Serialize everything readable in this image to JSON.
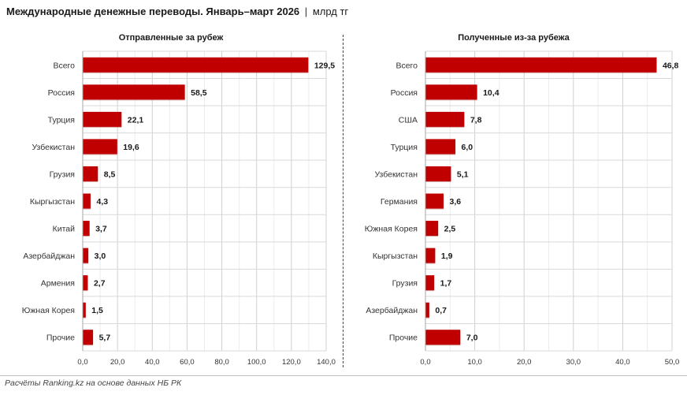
{
  "title": {
    "main": "Международные денежные переводы. Январь–март 2026",
    "separator": "|",
    "unit": "млрд тг"
  },
  "footnote": "Расчёты Ranking.kz на основе данных НБ РК",
  "colors": {
    "bar": "#c00000",
    "bar_edge": "#8a0000",
    "grid": "#d9d9d9"
  },
  "chart_data": [
    {
      "type": "bar",
      "orientation": "horizontal",
      "title": "Отправленные за рубеж",
      "categories": [
        "Всего",
        "Россия",
        "Турция",
        "Узбекистан",
        "Грузия",
        "Кыргызстан",
        "Китай",
        "Азербайджан",
        "Армения",
        "Южная Корея",
        "Прочие"
      ],
      "values": [
        129.5,
        58.5,
        22.1,
        19.6,
        8.5,
        4.3,
        3.7,
        3.0,
        2.7,
        1.5,
        5.7
      ],
      "value_labels": [
        "129,5",
        "58,5",
        "22,1",
        "19,6",
        "8,5",
        "4,3",
        "3,7",
        "3,0",
        "2,7",
        "1,5",
        "5,7"
      ],
      "xlim": [
        0,
        140
      ],
      "xticks": [
        0,
        20,
        40,
        60,
        80,
        100,
        120,
        140
      ],
      "xtick_labels": [
        "0,0",
        "20,0",
        "40,0",
        "60,0",
        "80,0",
        "100,0",
        "120,0",
        "140,0"
      ],
      "grid": true
    },
    {
      "type": "bar",
      "orientation": "horizontal",
      "title": "Полученные из-за рубежа",
      "categories": [
        "Всего",
        "Россия",
        "США",
        "Турция",
        "Узбекистан",
        "Германия",
        "Южная Корея",
        "Кыргызстан",
        "Грузия",
        "Азербайджан",
        "Прочие"
      ],
      "values": [
        46.8,
        10.4,
        7.8,
        6.0,
        5.1,
        3.6,
        2.5,
        1.9,
        1.7,
        0.7,
        7.0
      ],
      "value_labels": [
        "46,8",
        "10,4",
        "7,8",
        "6,0",
        "5,1",
        "3,6",
        "2,5",
        "1,9",
        "1,7",
        "0,7",
        "7,0"
      ],
      "xlim": [
        0,
        50
      ],
      "xticks": [
        0,
        10,
        20,
        30,
        40,
        50
      ],
      "xtick_labels": [
        "0,0",
        "10,0",
        "20,0",
        "30,0",
        "40,0",
        "50,0"
      ],
      "grid": true
    }
  ]
}
